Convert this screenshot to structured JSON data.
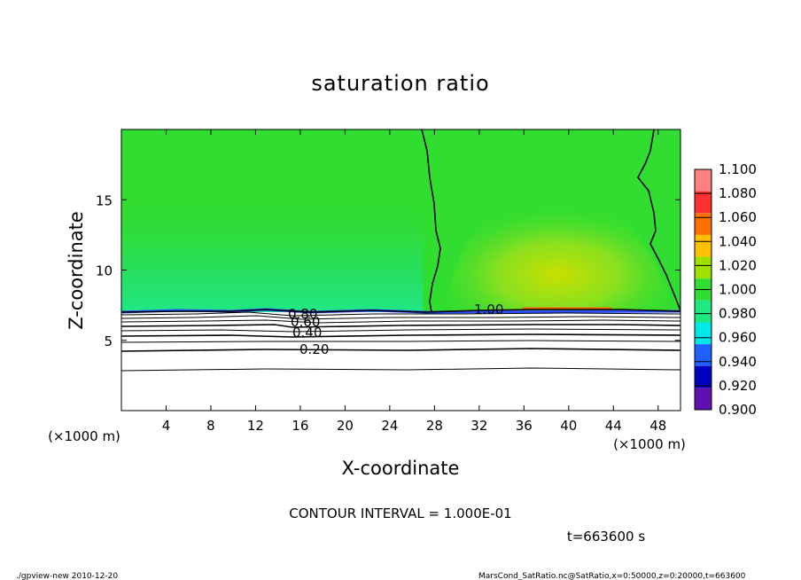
{
  "chart_data": {
    "type": "heatmap",
    "title": "saturation ratio",
    "xlabel": "X-coordinate",
    "ylabel": "Z-coordinate",
    "x_unit": "(×1000 m)",
    "z_unit": "(×1000 m)",
    "xlim": [
      0,
      50
    ],
    "ylim": [
      0,
      20
    ],
    "x_ticks": [
      "4",
      "8",
      "12",
      "16",
      "20",
      "24",
      "28",
      "32",
      "36",
      "40",
      "44",
      "48"
    ],
    "x_tick_values": [
      4,
      8,
      12,
      16,
      20,
      24,
      28,
      32,
      36,
      40,
      44,
      48
    ],
    "y_ticks": [
      "5",
      "10",
      "15"
    ],
    "y_tick_values": [
      5,
      10,
      15
    ],
    "colorbar": {
      "levels": [
        "1.100",
        "1.080",
        "1.060",
        "1.040",
        "1.020",
        "1.000",
        "0.980",
        "0.960",
        "0.940",
        "0.920",
        "0.900"
      ],
      "colors": [
        "#ff8080",
        "#ff3030",
        "#ff7000",
        "#ffc000",
        "#a0e000",
        "#30dd30",
        "#20e880",
        "#00e8e8",
        "#2060ff",
        "#0000c0",
        "#6010b0"
      ]
    },
    "contour_labels": [
      "0.80",
      "0.60",
      "0.40",
      "0.20",
      "1.00"
    ],
    "contour_interval_text": "CONTOUR INTERVAL = 1.000E-01",
    "time_text": "t=663600 s",
    "footer_left": "./gpview-new  2010-12-20",
    "footer_right": "MarsCond_SatRatio.nc@SatRatio,x=0:50000,z=0:20000,t=663600"
  }
}
